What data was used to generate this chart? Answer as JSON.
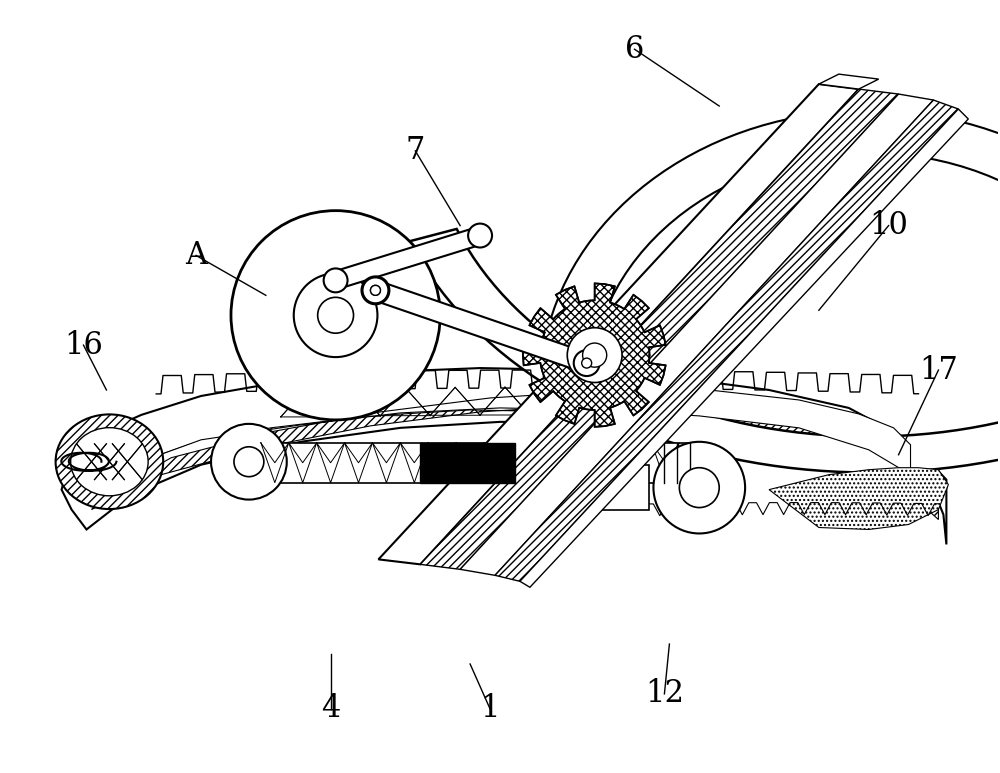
{
  "bg_color": "#ffffff",
  "line_color": "#000000",
  "figsize": [
    10.0,
    7.73
  ],
  "dpi": 100,
  "labels_info": [
    [
      "A",
      195,
      255,
      265,
      295
    ],
    [
      "1",
      490,
      710,
      470,
      665
    ],
    [
      "4",
      330,
      710,
      330,
      655
    ],
    [
      "6",
      635,
      48,
      720,
      105
    ],
    [
      "7",
      415,
      150,
      460,
      225
    ],
    [
      "10",
      890,
      225,
      820,
      310
    ],
    [
      "12",
      665,
      695,
      670,
      645
    ],
    [
      "16",
      82,
      345,
      105,
      390
    ],
    [
      "17",
      940,
      370,
      900,
      455
    ]
  ],
  "label_fontsize": 22
}
